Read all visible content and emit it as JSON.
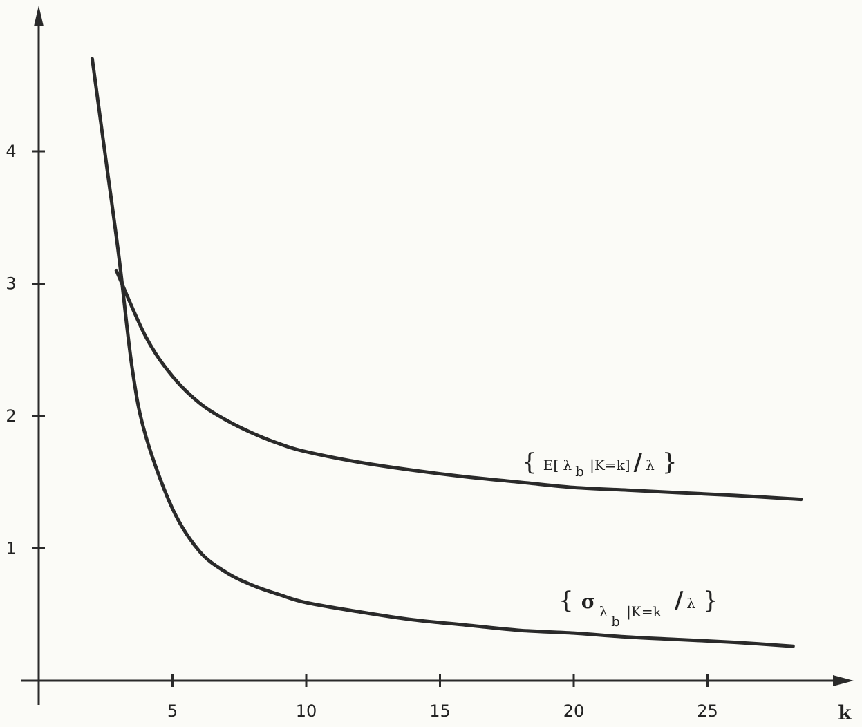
{
  "chart_data": {
    "type": "line",
    "title": "",
    "xlabel": "k",
    "ylabel": "",
    "xlim": [
      0,
      30
    ],
    "ylim": [
      0,
      5
    ],
    "xticks": [
      5,
      10,
      15,
      20,
      25
    ],
    "yticks": [
      1,
      2,
      3,
      4
    ],
    "xtick_labels": [
      "5",
      "10",
      "15",
      "20",
      "25"
    ],
    "ytick_labels": [
      "1",
      "2",
      "3",
      "4"
    ],
    "grid": false,
    "legend": "none",
    "series": [
      {
        "key": "mean",
        "x": [
          2.9,
          4,
          5,
          6,
          7,
          8,
          9,
          10,
          12,
          14,
          16,
          18,
          20,
          22,
          24,
          26,
          28.5
        ],
        "y": [
          3.1,
          2.6,
          2.3,
          2.1,
          1.97,
          1.87,
          1.79,
          1.73,
          1.65,
          1.59,
          1.54,
          1.5,
          1.46,
          1.44,
          1.42,
          1.4,
          1.37
        ]
      },
      {
        "key": "sd",
        "x": [
          2,
          2.5,
          3,
          3.5,
          4,
          5,
          6,
          7,
          8,
          9,
          10,
          12,
          14,
          16,
          18,
          20,
          22,
          24,
          26,
          28.2
        ],
        "y": [
          4.7,
          3.95,
          3.2,
          2.35,
          1.85,
          1.3,
          0.98,
          0.82,
          0.72,
          0.65,
          0.59,
          0.52,
          0.46,
          0.42,
          0.38,
          0.36,
          0.33,
          0.31,
          0.29,
          0.26
        ]
      }
    ],
    "annotations": {
      "mean_label": {
        "open": "{",
        "close": "}",
        "prefix": "E[ λ",
        "sub": "b",
        "mid": "|K=k]",
        "slash": "/",
        "suffix": "λ"
      },
      "sd_label": {
        "open": "{",
        "close": "}",
        "sigma": "σ",
        "lam": "λ",
        "lam_sub": "b",
        "cond": "|K=k",
        "slash": "/",
        "suffix": "λ"
      }
    }
  }
}
